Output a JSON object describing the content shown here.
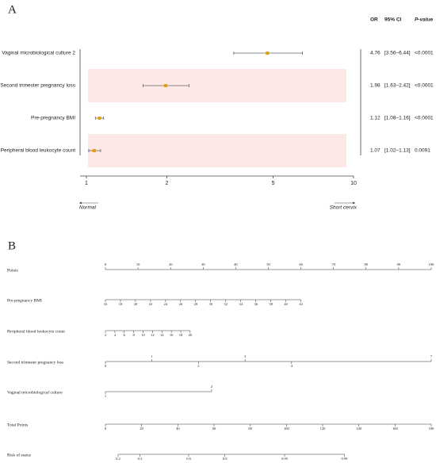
{
  "chart_data": [
    {
      "type": "forest",
      "panel": "A",
      "columns": [
        "OR",
        "95% CI",
        "P-value"
      ],
      "categories": [
        "Vaginal microbiological culture 2",
        "Second trimester pregnancy loss",
        "Pre-pregnancy BMI",
        "Peripheral blood leukocyte count"
      ],
      "values": [
        4.76,
        1.98,
        1.12,
        1.07
      ],
      "lower": [
        3.56,
        1.63,
        1.08,
        1.02
      ],
      "upper": [
        6.44,
        2.42,
        1.16,
        1.13
      ],
      "ci_labels": [
        "[3.56–6.44]",
        "[1.63–2.42]",
        "[1.08–1.16]",
        "[1.02–1.13]"
      ],
      "p_labels": [
        "<0.0001",
        "<0.0001",
        "<0.0001",
        "0.0091"
      ],
      "xlim": [
        1,
        10
      ],
      "xticks": [
        1,
        2,
        5,
        10
      ],
      "log_x": true,
      "xlabel_left": "Normal",
      "xlabel_right": "Short cervix",
      "color": "#e69f00",
      "shade_color": "#fde8e8"
    },
    {
      "type": "nomogram",
      "panel": "B",
      "scales": [
        {
          "name": "Points",
          "ticks": [
            0,
            10,
            20,
            30,
            40,
            50,
            60,
            70,
            80,
            90,
            100
          ],
          "points": [
            0,
            100
          ]
        },
        {
          "name": "Pre-pregnancy BMI",
          "ticks": [
            16,
            18,
            20,
            22,
            24,
            26,
            28,
            30,
            32,
            34,
            36,
            38,
            40,
            42
          ],
          "points": [
            0,
            60
          ]
        },
        {
          "name": "Peripheral blood leukocyte count",
          "ticks": [
            2,
            4,
            6,
            8,
            10,
            12,
            14,
            16,
            18,
            20
          ],
          "points": [
            0,
            26
          ]
        },
        {
          "name": "Second trimester pregnancy loss",
          "ticks": [
            0,
            1,
            2,
            3,
            4,
            7
          ],
          "points": [
            0,
            100
          ]
        },
        {
          "name": "Vaginal microbiological culture",
          "ticks": [
            1,
            2
          ],
          "points": [
            0,
            32.6
          ]
        },
        {
          "name": "Total Points",
          "ticks": [
            0,
            20,
            40,
            60,
            80,
            100,
            120,
            140,
            160,
            180
          ],
          "points": [
            0,
            100
          ]
        },
        {
          "name": "Risk of status",
          "ticks": [
            0.2,
            0.3,
            0.6,
            0.8,
            0.95,
            0.99
          ],
          "total_points": [
            7,
            19,
            46,
            66,
            99,
            132
          ]
        }
      ]
    }
  ]
}
